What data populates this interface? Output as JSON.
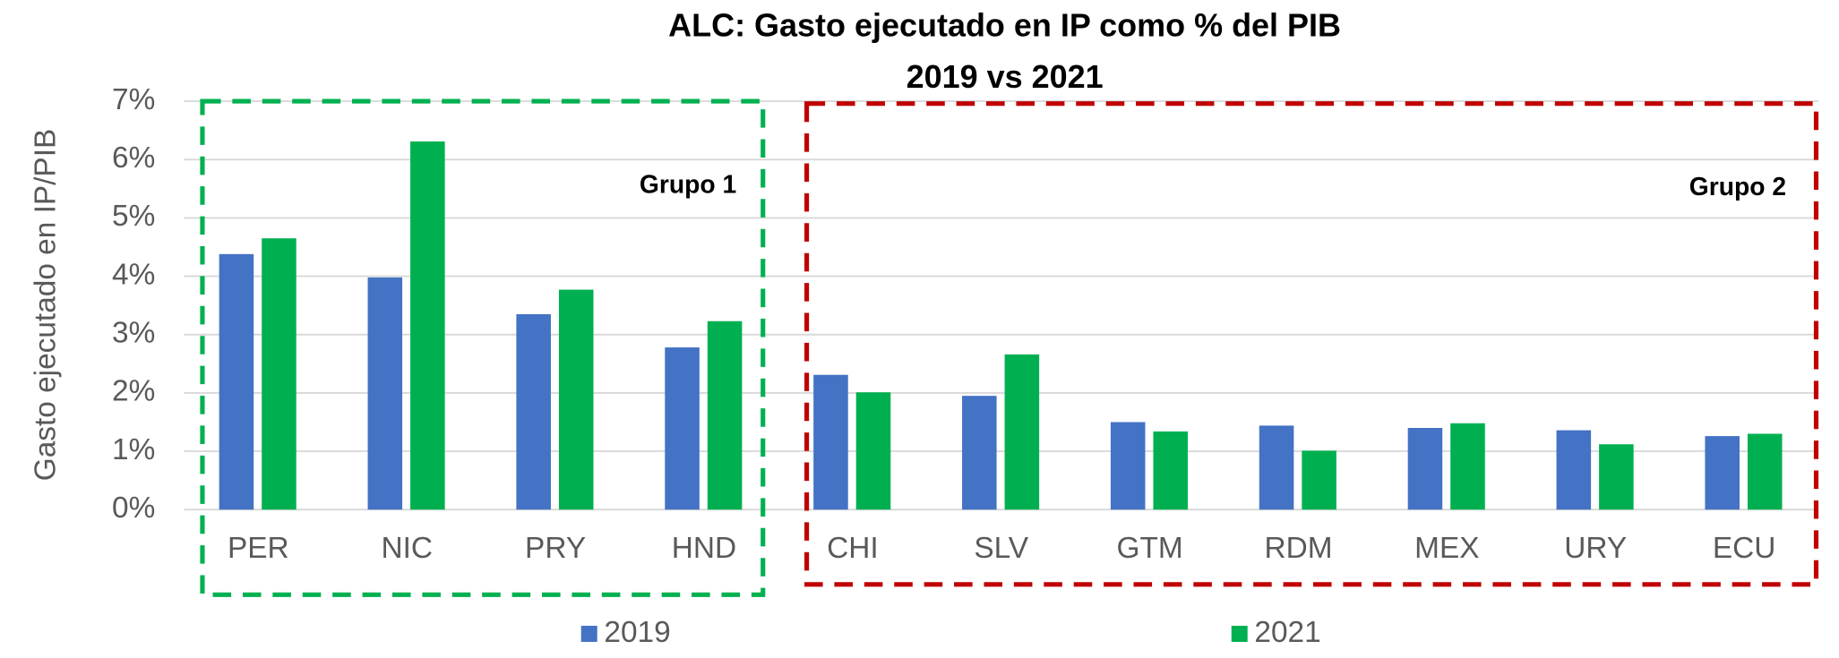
{
  "chart_data": {
    "type": "bar",
    "title": "ALC: Gasto ejecutado en IP como % del PIB",
    "subtitle": "2019 vs 2021",
    "y_label": "Gasto ejecutado en IP/PIB",
    "categories": [
      "PER",
      "NIC",
      "PRY",
      "HND",
      "CHI",
      "SLV",
      "GTM",
      "RDM",
      "MEX",
      "URY",
      "ECU"
    ],
    "series": [
      {
        "name": "2019",
        "color": "#4472c4",
        "values": [
          4.38,
          3.98,
          3.35,
          2.78,
          2.31,
          1.95,
          1.5,
          1.44,
          1.4,
          1.36,
          1.26
        ]
      },
      {
        "name": "2021",
        "color": "#00b050",
        "values": [
          4.65,
          6.31,
          3.77,
          3.23,
          2.01,
          2.66,
          1.34,
          1.01,
          1.48,
          1.12,
          1.3
        ]
      }
    ],
    "ylim": [
      0,
      7
    ],
    "yticks": [
      {
        "value": 0,
        "label": "0%"
      },
      {
        "value": 1,
        "label": "1%"
      },
      {
        "value": 2,
        "label": "2%"
      },
      {
        "value": 3,
        "label": "3%"
      },
      {
        "value": 4,
        "label": "4%"
      },
      {
        "value": 5,
        "label": "5%"
      },
      {
        "value": 6,
        "label": "6%"
      },
      {
        "value": 7,
        "label": "7%"
      }
    ],
    "grid": true,
    "legend": "bottom",
    "annotations": [
      "Grupo 1",
      "Grupo 2"
    ]
  }
}
